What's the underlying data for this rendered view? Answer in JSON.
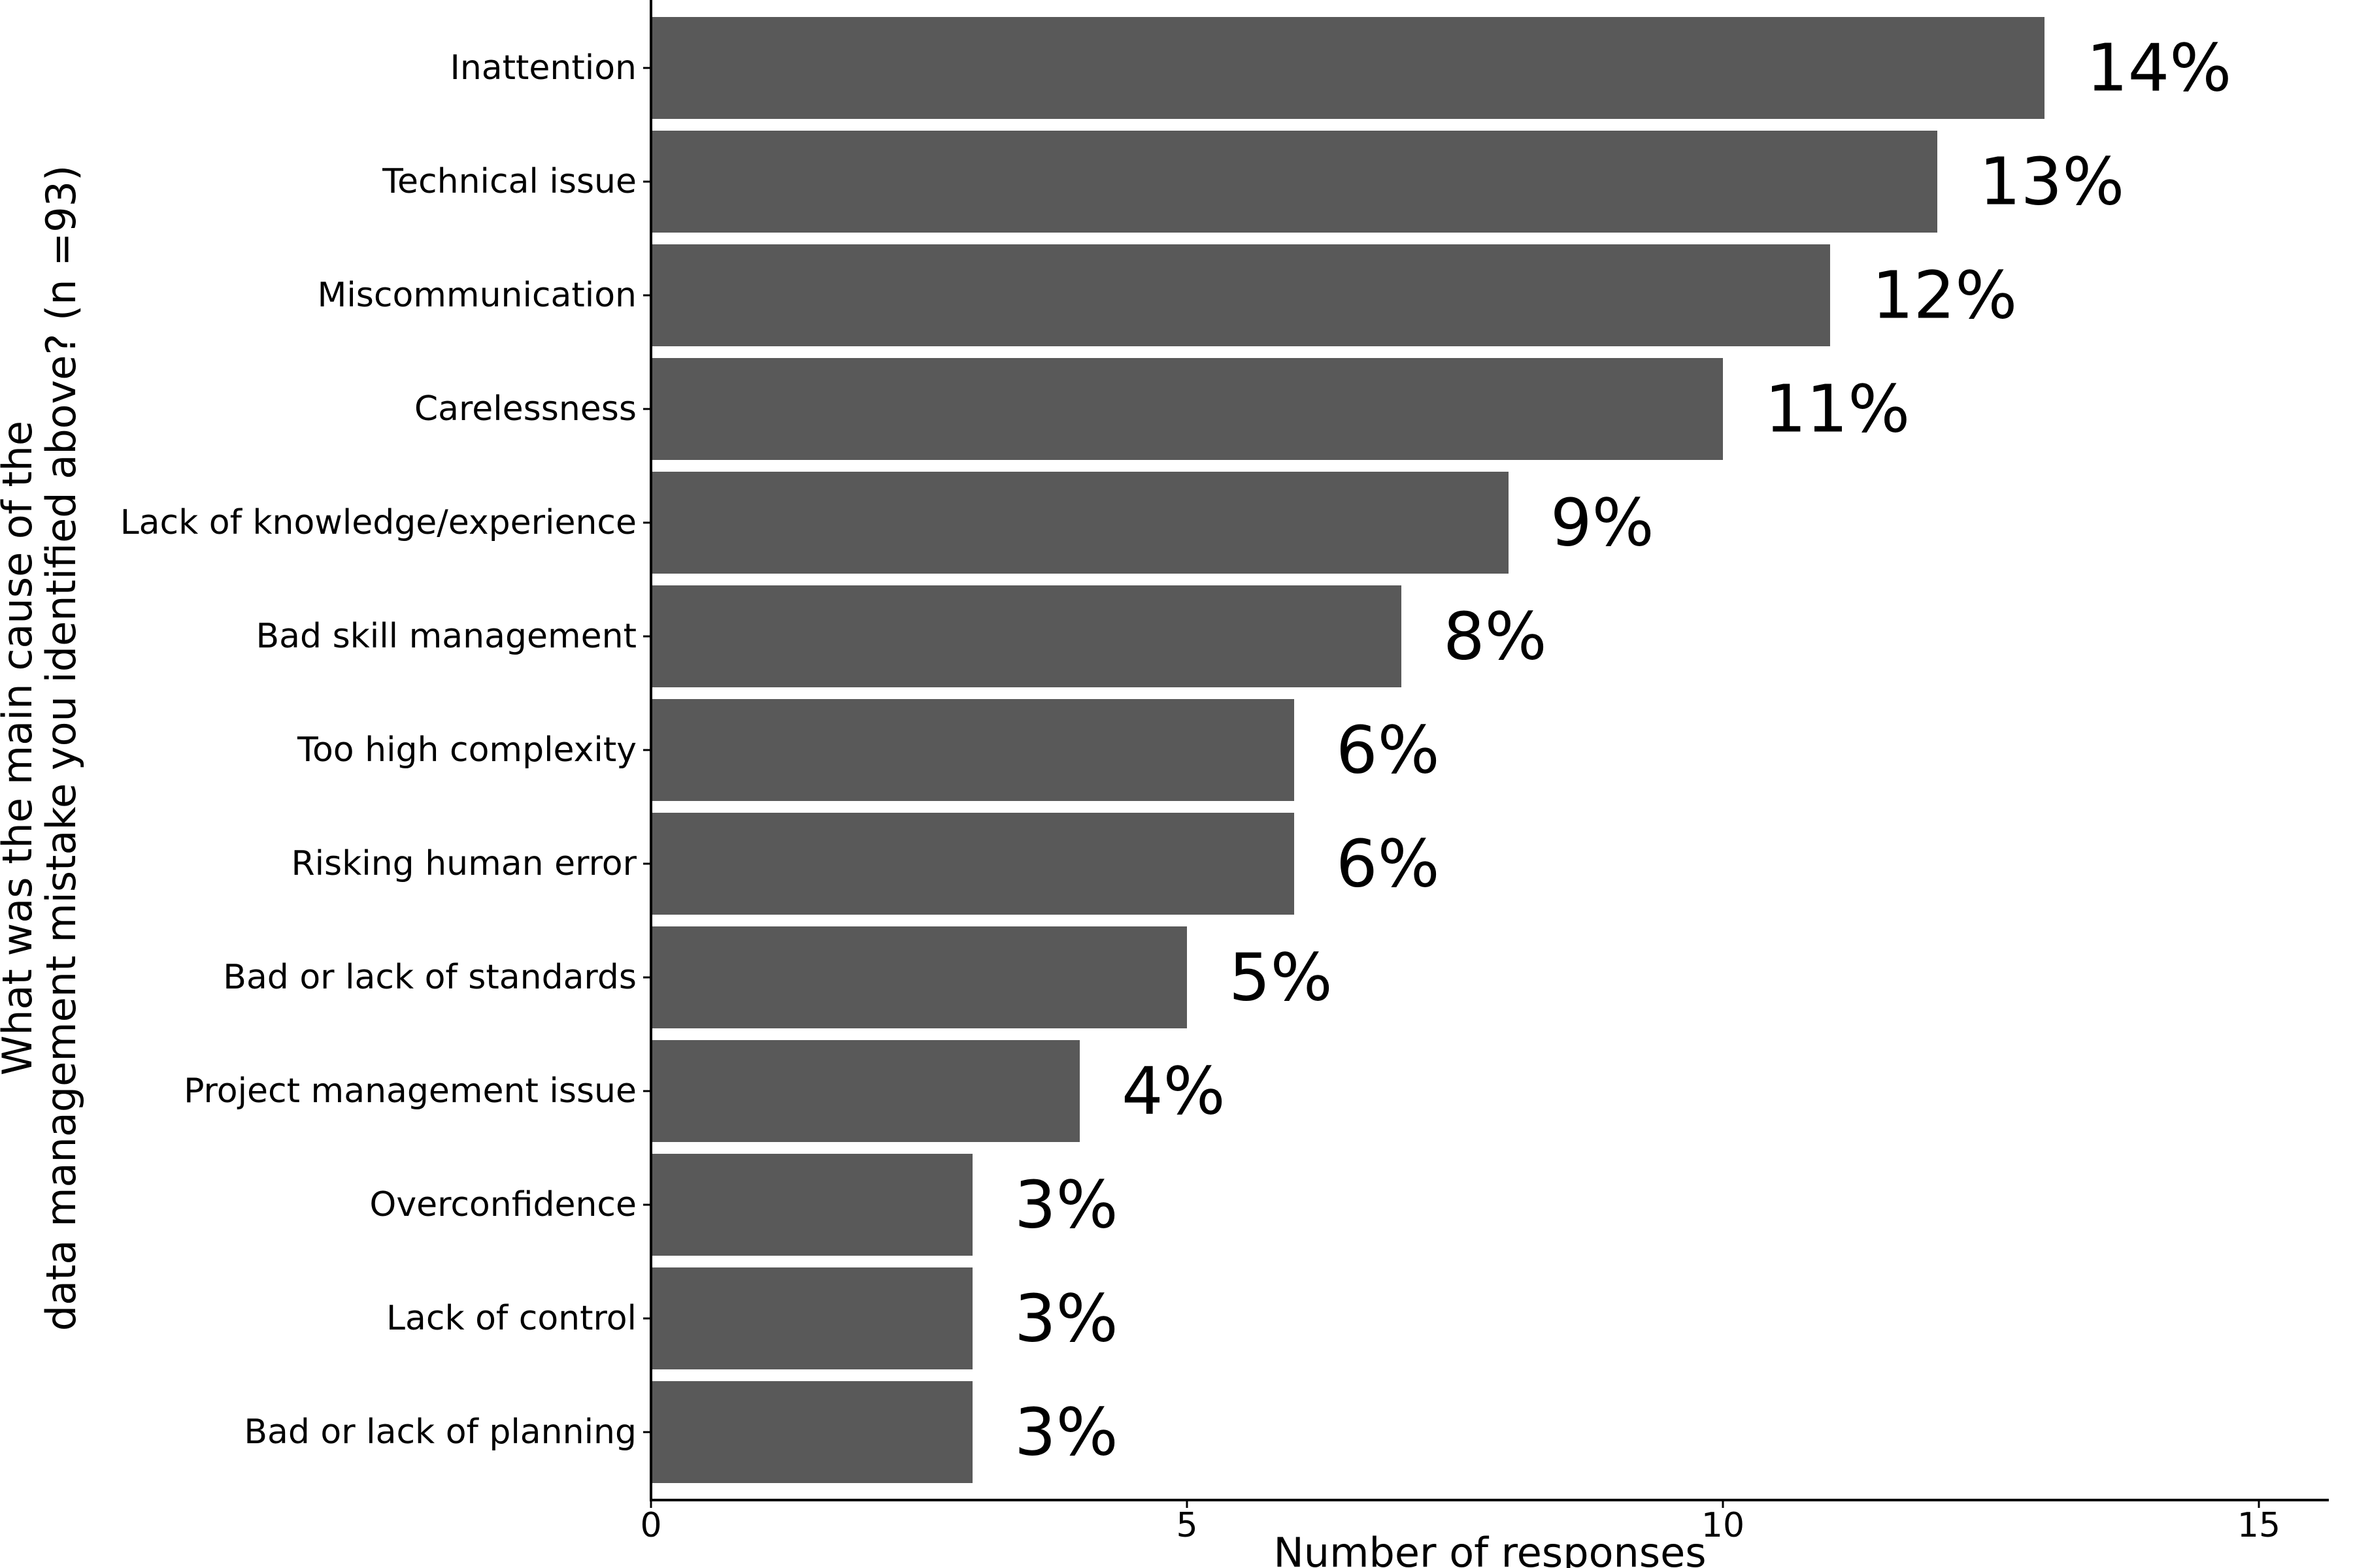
{
  "chart_data": {
    "type": "bar",
    "orientation": "horizontal",
    "categories": [
      "Inattention",
      "Technical issue",
      "Miscommunication",
      "Carelessness",
      "Lack of knowledge/experience",
      "Bad skill management",
      "Too high complexity",
      "Risking human error",
      "Bad or lack of standards",
      "Project management issue",
      "Overconfidence",
      "Lack of control",
      "Bad or lack of planning"
    ],
    "values": [
      13,
      12,
      11,
      10,
      8,
      7,
      6,
      6,
      5,
      4,
      3,
      3,
      3
    ],
    "data_labels": [
      "14%",
      "13%",
      "12%",
      "11%",
      "9%",
      "8%",
      "6%",
      "6%",
      "5%",
      "4%",
      "3%",
      "3%",
      "3%"
    ],
    "xlabel": "Number of responses",
    "ylabel_lines": [
      "What was the main cause of the",
      "data management mistake you identified above?  (n =93)"
    ],
    "xticks": [
      "0",
      "5",
      "10",
      "15"
    ],
    "xlim": [
      0,
      15.6
    ],
    "bar_color": "#595959",
    "grid": false,
    "legend": "none"
  }
}
